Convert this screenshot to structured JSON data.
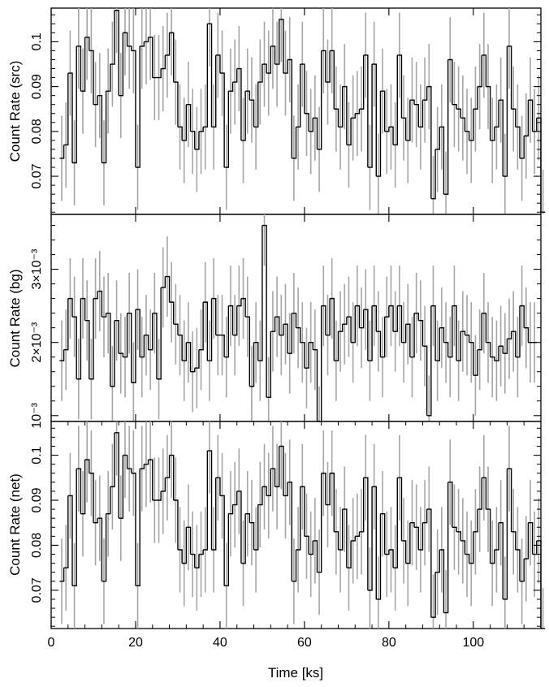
{
  "chart_data": [
    {
      "type": "line",
      "ylabel": "Count Rate (src)",
      "xlabel": "",
      "xlim": [
        0,
        116
      ],
      "ylim": [
        0.0615,
        0.1075
      ],
      "y_ticks": [
        {
          "v": 0.07,
          "label": "0.07"
        },
        {
          "v": 0.08,
          "label": "0.08"
        },
        {
          "v": 0.09,
          "label": "0.09"
        },
        {
          "v": 0.1,
          "label": "0.1"
        }
      ],
      "y_minor_step": 0.002,
      "x_tick_values": [
        0,
        20,
        40,
        60,
        80,
        100
      ],
      "series": [
        {
          "bin_width_ks": 1.0,
          "x_start": 2.0,
          "error": 0.0095,
          "values": [
            0.074,
            0.077,
            0.093,
            0.073,
            0.099,
            0.089,
            0.101,
            0.098,
            0.086,
            0.088,
            0.073,
            0.089,
            0.095,
            0.107,
            0.088,
            0.102,
            0.099,
            0.098,
            0.072,
            0.099,
            0.1,
            0.101,
            0.092,
            0.092,
            0.094,
            0.097,
            0.102,
            0.091,
            0.081,
            0.078,
            0.086,
            0.08,
            0.076,
            0.08,
            0.081,
            0.104,
            0.081,
            0.097,
            0.093,
            0.072,
            0.089,
            0.091,
            0.094,
            0.078,
            0.089,
            0.087,
            0.081,
            0.091,
            0.095,
            0.093,
            0.099,
            0.095,
            0.105,
            0.093,
            0.096,
            0.074,
            0.081,
            0.095,
            0.084,
            0.08,
            0.083,
            0.076,
            0.098,
            0.091,
            0.098,
            0.085,
            0.081,
            0.09,
            0.077,
            0.083,
            0.084,
            0.085,
            0.097,
            0.072,
            0.095,
            0.07,
            0.089,
            0.08,
            0.081,
            0.077,
            0.097,
            0.083,
            0.078,
            0.087,
            0.086,
            0.081,
            0.087,
            0.09,
            0.065,
            0.076,
            0.081,
            0.066,
            0.096,
            0.086,
            0.085,
            0.083,
            0.08,
            0.078,
            0.085,
            0.09,
            0.097,
            0.09,
            0.078,
            0.081,
            0.087,
            0.07,
            0.099,
            0.085,
            0.081,
            0.074,
            0.079,
            0.087,
            0.08,
            0.083,
            0.062
          ]
        }
      ]
    },
    {
      "type": "line",
      "ylabel": "Count Rate (bg)",
      "xlabel": "",
      "xlim": [
        0,
        116
      ],
      "ylim": [
        0.00092,
        0.00375
      ],
      "y_ticks": [
        {
          "v": 0.001,
          "label": "10⁻³"
        },
        {
          "v": 0.002,
          "label": "2×10⁻³"
        },
        {
          "v": 0.003,
          "label": "3×10⁻³"
        }
      ],
      "y_minor_step": 0.0002,
      "x_tick_values": [
        0,
        20,
        40,
        60,
        80,
        100
      ],
      "series": [
        {
          "bin_width_ks": 1.0,
          "x_start": 2.0,
          "error": 0.00055,
          "values": [
            0.00175,
            0.0019,
            0.0026,
            0.00235,
            0.0015,
            0.0026,
            0.0023,
            0.0015,
            0.0026,
            0.0027,
            0.00235,
            0.0024,
            0.0014,
            0.0023,
            0.00185,
            0.0018,
            0.0024,
            0.00145,
            0.00245,
            0.0018,
            0.0021,
            0.0019,
            0.0024,
            0.0015,
            0.00275,
            0.0029,
            0.00255,
            0.00225,
            0.0021,
            0.00175,
            0.002,
            0.0016,
            0.00165,
            0.0019,
            0.00255,
            0.00175,
            0.0026,
            0.0021,
            0.0021,
            0.0018,
            0.0025,
            0.0021,
            0.0025,
            0.0026,
            0.00235,
            0.0014,
            0.002,
            0.00175,
            0.0036,
            0.00125,
            0.00215,
            0.00235,
            0.0021,
            0.00225,
            0.00185,
            0.0024,
            0.0022,
            0.002,
            0.00165,
            0.002,
            0.0019,
            0.00085,
            0.0025,
            0.0021,
            0.0026,
            0.00175,
            0.00215,
            0.00225,
            0.00235,
            0.002,
            0.0025,
            0.0022,
            0.00245,
            0.00175,
            0.0025,
            0.00215,
            0.0018,
            0.00235,
            0.0025,
            0.00215,
            0.0025,
            0.002,
            0.00225,
            0.0018,
            0.0024,
            0.0023,
            0.00195,
            0.001,
            0.0025,
            0.00175,
            0.0022,
            0.002,
            0.0018,
            0.0025,
            0.00175,
            0.00215,
            0.0021,
            0.002,
            0.00155,
            0.0019,
            0.0024,
            0.002,
            0.0018,
            0.00175,
            0.00195,
            0.00185,
            0.00205,
            0.00215,
            0.0018,
            0.0025,
            0.0022,
            0.002,
            0.002
          ]
        }
      ]
    },
    {
      "type": "line",
      "ylabel": "Count Rate (net)",
      "xlabel": "Time [ks]",
      "xlim": [
        0,
        116
      ],
      "ylim": [
        0.0615,
        0.1075
      ],
      "y_ticks": [
        {
          "v": 0.07,
          "label": "0.07"
        },
        {
          "v": 0.08,
          "label": "0.08"
        },
        {
          "v": 0.09,
          "label": "0.09"
        },
        {
          "v": 0.1,
          "label": "0.1"
        }
      ],
      "y_minor_step": 0.002,
      "x_ticks": [
        {
          "v": 0,
          "label": "0"
        },
        {
          "v": 20,
          "label": "20"
        },
        {
          "v": 40,
          "label": "40"
        },
        {
          "v": 60,
          "label": "60"
        },
        {
          "v": 80,
          "label": "80"
        },
        {
          "v": 100,
          "label": "100"
        }
      ],
      "x_minor_step": 4,
      "series": [
        {
          "bin_width_ks": 1.0,
          "x_start": 2.0,
          "error": 0.0095,
          "values": [
            0.072,
            0.075,
            0.091,
            0.071,
            0.097,
            0.087,
            0.099,
            0.096,
            0.085,
            0.086,
            0.072,
            0.087,
            0.093,
            0.105,
            0.086,
            0.1,
            0.097,
            0.096,
            0.071,
            0.097,
            0.098,
            0.099,
            0.09,
            0.09,
            0.092,
            0.095,
            0.1,
            0.09,
            0.079,
            0.076,
            0.084,
            0.078,
            0.075,
            0.078,
            0.079,
            0.101,
            0.079,
            0.095,
            0.091,
            0.071,
            0.087,
            0.089,
            0.092,
            0.076,
            0.087,
            0.085,
            0.079,
            0.089,
            0.093,
            0.091,
            0.097,
            0.093,
            0.102,
            0.091,
            0.094,
            0.072,
            0.079,
            0.093,
            0.082,
            0.078,
            0.081,
            0.074,
            0.096,
            0.089,
            0.096,
            0.083,
            0.079,
            0.088,
            0.075,
            0.081,
            0.082,
            0.083,
            0.095,
            0.07,
            0.093,
            0.068,
            0.087,
            0.078,
            0.079,
            0.075,
            0.095,
            0.081,
            0.076,
            0.085,
            0.084,
            0.079,
            0.085,
            0.088,
            0.064,
            0.074,
            0.079,
            0.065,
            0.094,
            0.084,
            0.083,
            0.081,
            0.078,
            0.076,
            0.083,
            0.088,
            0.095,
            0.088,
            0.076,
            0.079,
            0.085,
            0.068,
            0.097,
            0.083,
            0.079,
            0.072,
            0.077,
            0.085,
            0.078,
            0.081,
            0.061
          ]
        }
      ]
    }
  ],
  "colors": {
    "background": "#ffffff",
    "axis": "#000000",
    "step_line": "#000000",
    "error_bar": "#a6a6a6"
  }
}
